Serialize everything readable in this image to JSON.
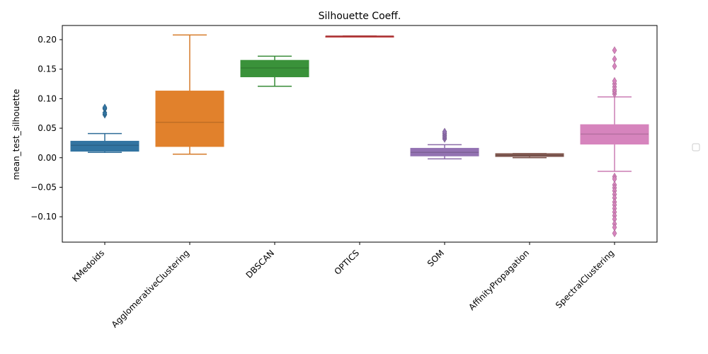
{
  "chart_data": {
    "type": "box",
    "title": "Silhouette Coeff.",
    "xlabel": "",
    "ylabel": "mean_test_silhouette",
    "ylim": [
      -0.143,
      0.224
    ],
    "yticks": [
      -0.1,
      -0.05,
      0.0,
      0.05,
      0.1,
      0.15,
      0.2
    ],
    "ytick_labels": [
      "−0.10",
      "−0.05",
      "0.00",
      "0.05",
      "0.10",
      "0.15",
      "0.20"
    ],
    "grid": false,
    "legend": "right, empty",
    "categories": [
      "KMedoids",
      "AgglomerativeClustering",
      "DBSCAN",
      "OPTICS",
      "SOM",
      "AffinityPropagation",
      "SpectralClustering"
    ],
    "colors": [
      "#3274a1",
      "#e1812c",
      "#3a923a",
      "#c03d3e",
      "#9372b2",
      "#845b53",
      "#d684bd"
    ],
    "boxes": [
      {
        "whisker_low": 0.009,
        "q1": 0.011,
        "median": 0.021,
        "q3": 0.028,
        "whisker_high": 0.041,
        "outliers": [
          0.073,
          0.076,
          0.083,
          0.085
        ]
      },
      {
        "whisker_low": 0.006,
        "q1": 0.019,
        "median": 0.06,
        "q3": 0.113,
        "whisker_high": 0.208,
        "outliers": []
      },
      {
        "whisker_low": 0.121,
        "q1": 0.137,
        "median": 0.152,
        "q3": 0.165,
        "whisker_high": 0.172,
        "outliers": []
      },
      {
        "whisker_low": 0.206,
        "q1": 0.206,
        "median": 0.206,
        "q3": 0.206,
        "whisker_high": 0.206,
        "outliers": []
      },
      {
        "whisker_low": -0.002,
        "q1": 0.003,
        "median": 0.009,
        "q3": 0.016,
        "whisker_high": 0.022,
        "outliers": [
          0.032,
          0.035,
          0.038,
          0.041,
          0.044
        ]
      },
      {
        "whisker_low": 0.0,
        "q1": 0.002,
        "median": 0.004,
        "q3": 0.007,
        "whisker_high": 0.007,
        "outliers": []
      },
      {
        "whisker_low": -0.023,
        "q1": 0.023,
        "median": 0.04,
        "q3": 0.056,
        "whisker_high": 0.103,
        "outliers": [
          0.108,
          0.112,
          0.115,
          0.12,
          0.125,
          0.13,
          0.155,
          0.167,
          0.182,
          -0.032,
          -0.036,
          -0.046,
          -0.051,
          -0.056,
          -0.062,
          -0.068,
          -0.075,
          -0.08,
          -0.086,
          -0.092,
          -0.098,
          -0.104,
          -0.112,
          -0.118,
          -0.128
        ]
      }
    ]
  }
}
